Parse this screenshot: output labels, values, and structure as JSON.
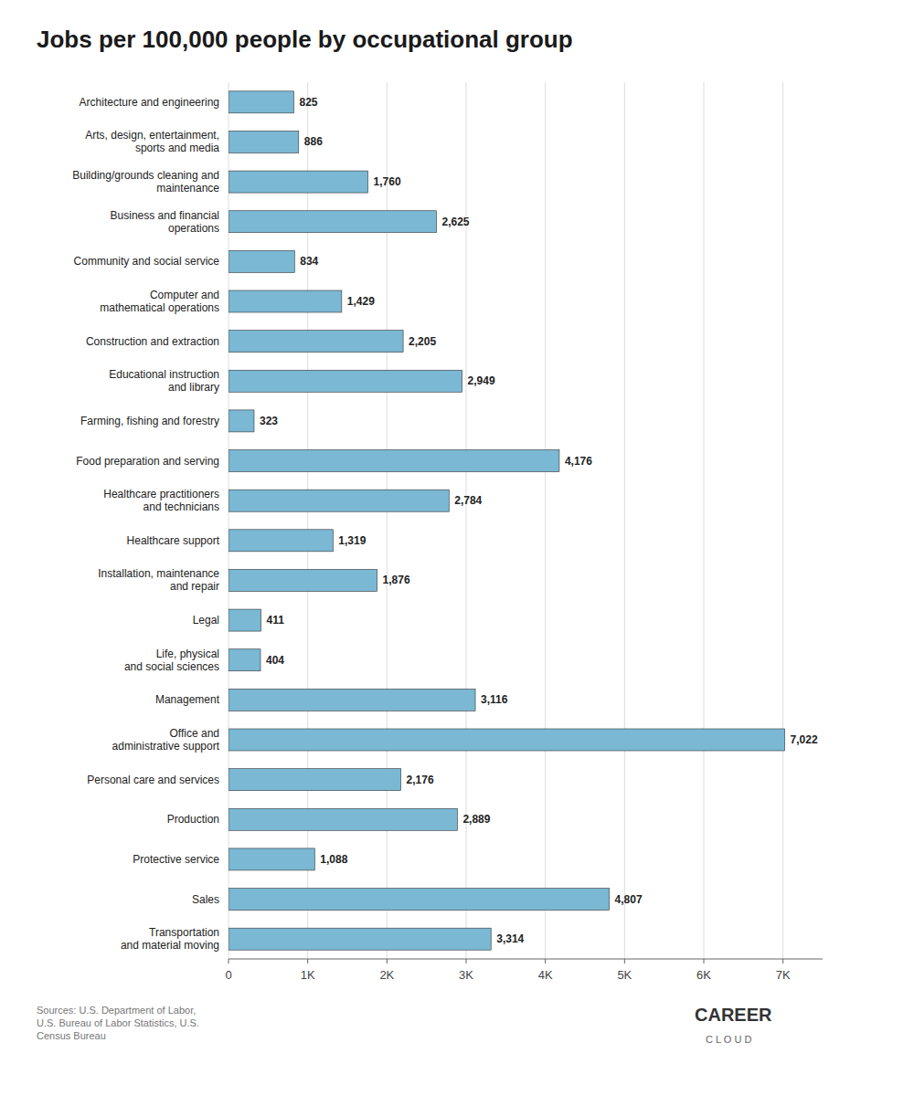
{
  "chart_data": {
    "type": "bar",
    "orientation": "horizontal",
    "title": "Jobs per 100,000 people by occupational group",
    "categories": [
      "Architecture and engineering",
      "Arts, design, entertainment,\nsports and media",
      "Building/grounds cleaning and\nmaintenance",
      "Business and financial\noperations",
      "Community and social service",
      "Computer and\nmathematical operations",
      "Construction and extraction",
      "Educational instruction\nand library",
      "Farming, fishing and forestry",
      "Food preparation and serving",
      "Healthcare practitioners\nand technicians",
      "Healthcare support",
      "Installation, maintenance\nand repair",
      "Legal",
      "Life, physical\nand social sciences",
      "Management",
      "Office and\nadministrative support",
      "Personal care and services",
      "Production",
      "Protective service",
      "Sales",
      "Transportation\nand material moving"
    ],
    "values": [
      825,
      886,
      1760,
      2625,
      834,
      1429,
      2205,
      2949,
      323,
      4176,
      2784,
      1319,
      1876,
      411,
      404,
      3116,
      7022,
      2176,
      2889,
      1088,
      4807,
      3314
    ],
    "value_labels": [
      "825",
      "886",
      "1,760",
      "2,625",
      "834",
      "1,429",
      "2,205",
      "2,949",
      "323",
      "4,176",
      "2,784",
      "1,319",
      "1,876",
      "411",
      "404",
      "3,116",
      "7,022",
      "2,176",
      "2,889",
      "1,088",
      "4,807",
      "3,314"
    ],
    "data_labels": true,
    "color": "#7ab8d4",
    "xlim": [
      0,
      7500
    ],
    "xticks": [
      0,
      {
        "value": 1000,
        "label": "1K"
      },
      {
        "value": 2000,
        "label": "2K"
      },
      {
        "value": 3000,
        "label": "3K"
      },
      {
        "value": 4000,
        "label": "4K"
      },
      {
        "value": 5000,
        "label": "5K"
      },
      {
        "value": 6000,
        "label": "6K"
      },
      {
        "value": 7000,
        "label": "7K"
      }
    ],
    "grid": true,
    "annotations": [
      "Sources: U.S. Department of Labor,\nU.S. Bureau of Labor Statistics, U.S.\nCensus Bureau",
      "CAREER",
      "C L O U D"
    ]
  }
}
